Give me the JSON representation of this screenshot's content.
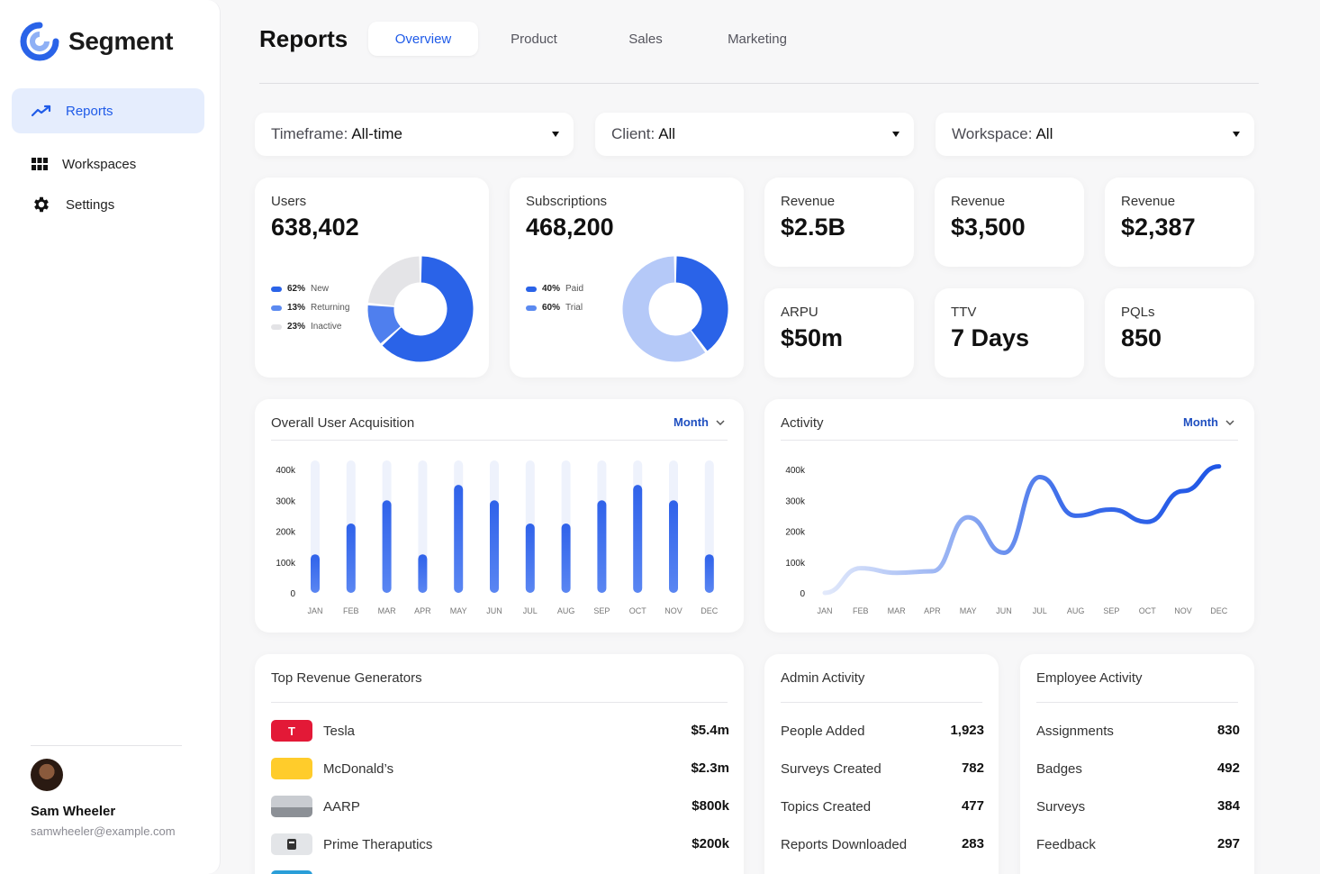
{
  "app": {
    "name": "Segment"
  },
  "sidebar": {
    "items": [
      {
        "label": "Reports",
        "icon": "trending-up-icon",
        "active": true
      },
      {
        "label": "Workspaces",
        "icon": "grid-icon",
        "active": false
      },
      {
        "label": "Settings",
        "icon": "gear-icon",
        "active": false
      }
    ],
    "user": {
      "name": "Sam Wheeler",
      "email": "samwheeler@example.com"
    }
  },
  "header": {
    "title": "Reports",
    "tabs": [
      "Overview",
      "Product",
      "Sales",
      "Marketing"
    ],
    "active_tab": "Overview"
  },
  "filters": [
    {
      "label": "Timeframe:",
      "value": "All-time"
    },
    {
      "label": "Client:",
      "value": "All"
    },
    {
      "label": "Workspace:",
      "value": "All"
    }
  ],
  "users_card": {
    "label": "Users",
    "value": "638,402",
    "legend": [
      {
        "pct": "62%",
        "name": "New",
        "color": "#2a63e8"
      },
      {
        "pct": "13%",
        "name": "Returning",
        "color": "#5b8af0"
      },
      {
        "pct": "23%",
        "name": "Inactive",
        "color": "#e3e3e6"
      }
    ]
  },
  "subs_card": {
    "label": "Subscriptions",
    "value": "468,200",
    "legend": [
      {
        "pct": "40%",
        "name": "Paid",
        "color": "#2a63e8"
      },
      {
        "pct": "60%",
        "name": "Trial",
        "color": "#5b8af0"
      }
    ]
  },
  "kpis": [
    {
      "label": "Revenue",
      "value": "$2.5B"
    },
    {
      "label": "Revenue",
      "value": "$3,500"
    },
    {
      "label": "Revenue",
      "value": "$2,387"
    },
    {
      "label": "ARPU",
      "value": "$50m"
    },
    {
      "label": "TTV",
      "value": "7 Days"
    },
    {
      "label": "PQLs",
      "value": "850"
    }
  ],
  "acquisition": {
    "title": "Overall User Acquisition",
    "period": "Month"
  },
  "activity": {
    "title": "Activity",
    "period": "Month"
  },
  "top_revenue": {
    "title": "Top Revenue Generators",
    "rows": [
      {
        "name": "Tesla",
        "value": "$5.4m",
        "color": "#e31937"
      },
      {
        "name": "McDonald’s",
        "value": "$2.3m",
        "color": "#ffcc2b"
      },
      {
        "name": "AARP",
        "value": "$800k",
        "color": "#b0b4ba"
      },
      {
        "name": "Prime Theraputics",
        "value": "$200k",
        "color": "#d4d6da"
      }
    ]
  },
  "admin_activity": {
    "title": "Admin Activity",
    "rows": [
      {
        "name": "People Added",
        "value": "1,923"
      },
      {
        "name": "Surveys Created",
        "value": "782"
      },
      {
        "name": "Topics Created",
        "value": "477"
      },
      {
        "name": "Reports Downloaded",
        "value": "283"
      }
    ]
  },
  "employee_activity": {
    "title": "Employee Activity",
    "rows": [
      {
        "name": "Assignments",
        "value": "830"
      },
      {
        "name": "Badges",
        "value": "492"
      },
      {
        "name": "Surveys",
        "value": "384"
      },
      {
        "name": "Feedback",
        "value": "297"
      }
    ]
  },
  "chart_data": [
    {
      "type": "pie",
      "title": "Users",
      "categories": [
        "New",
        "Returning",
        "Inactive"
      ],
      "values": [
        62,
        13,
        23
      ]
    },
    {
      "type": "pie",
      "title": "Subscriptions",
      "categories": [
        "Paid",
        "Trial"
      ],
      "values": [
        40,
        60
      ]
    },
    {
      "type": "bar",
      "title": "Overall User Acquisition",
      "categories": [
        "JAN",
        "FEB",
        "MAR",
        "APR",
        "MAY",
        "JUN",
        "JUL",
        "AUG",
        "SEP",
        "OCT",
        "NOV",
        "DEC"
      ],
      "values": [
        125000,
        225000,
        300000,
        125000,
        350000,
        300000,
        225000,
        225000,
        300000,
        350000,
        300000,
        125000
      ],
      "yticks": [
        "400k",
        "300k",
        "200k",
        "100k",
        "0"
      ],
      "ylim": [
        0,
        400000
      ]
    },
    {
      "type": "line",
      "title": "Activity",
      "categories": [
        "JAN",
        "FEB",
        "MAR",
        "APR",
        "MAY",
        "JUN",
        "JUL",
        "AUG",
        "SEP",
        "OCT",
        "NOV",
        "DEC"
      ],
      "values": [
        0,
        80000,
        65000,
        70000,
        245000,
        130000,
        375000,
        250000,
        270000,
        230000,
        330000,
        410000
      ],
      "yticks": [
        "400k",
        "300k",
        "200k",
        "100k",
        "0"
      ],
      "ylim": [
        0,
        400000
      ]
    }
  ]
}
